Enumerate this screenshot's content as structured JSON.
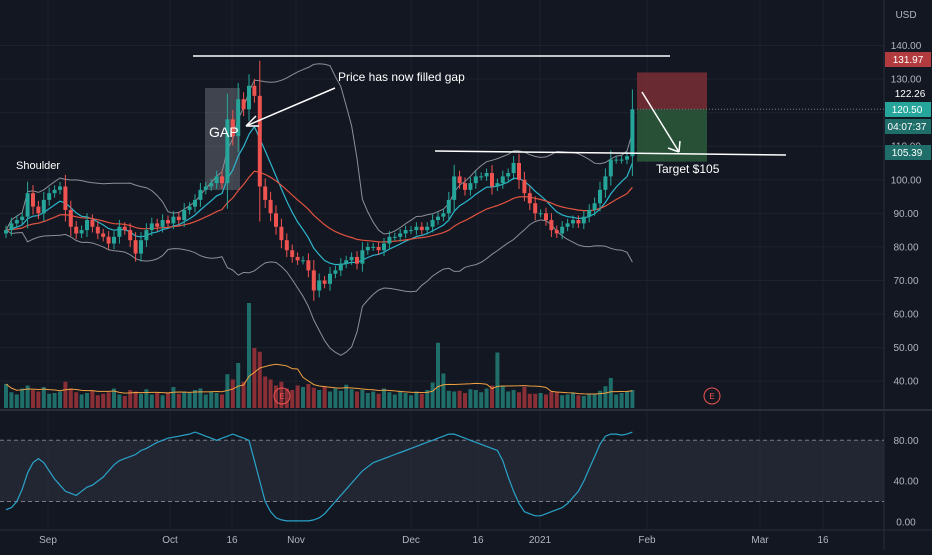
{
  "currency": "USD",
  "colors": {
    "background": "#131722",
    "up": "#26a69a",
    "down": "#ef5350",
    "volume_up": "#1f6e69",
    "volume_down": "#8a2f36",
    "bollinger": "#8c8f96",
    "ema_fast": "#2bb6cc",
    "ema_slow": "#e0533f",
    "volume_ma": "#f0a040",
    "rsi": "#2aa3c9",
    "annotation": "#ffffff",
    "stop_zone": "#7a2e35",
    "target_zone": "#2c5a39"
  },
  "annotations": {
    "gap": "GAP",
    "gap_note": "Price has now filled gap",
    "target": "Target $105",
    "shoulder": "Shoulder",
    "earnings": "E"
  },
  "price_labels": {
    "stop": "131.97",
    "last": "122.26",
    "current": "120.50",
    "countdown": "04:07:37",
    "support": "105.39"
  },
  "chart_data": [
    {
      "type": "candlestick",
      "title": "",
      "y_axis_side": "right",
      "ylim": [
        32,
        147
      ],
      "y_ticks": [
        40,
        50,
        60,
        70,
        80,
        90,
        100,
        110,
        120,
        130,
        140
      ],
      "y_tick_labels": [
        "40.00",
        "50.00",
        "60.00",
        "70.00",
        "80.00",
        "90.00",
        "100.00",
        "110.00",
        "120.00",
        "130.00",
        "140.00"
      ],
      "x_tick_labels": [
        "Sep",
        "Oct",
        "16",
        "Nov",
        "Dec",
        "16",
        "2021",
        "Feb",
        "Mar",
        "16"
      ],
      "close_series": [
        85,
        87,
        88,
        89,
        96,
        92,
        90,
        94,
        96,
        97,
        98,
        91,
        86,
        84,
        85,
        88,
        86,
        84,
        83,
        81,
        83,
        86,
        85,
        82,
        78,
        82,
        85,
        87,
        86,
        88,
        87,
        89,
        88,
        91,
        92,
        94,
        97,
        98,
        99,
        101,
        99,
        118,
        113,
        124,
        121,
        128,
        125,
        98,
        94,
        90,
        86,
        82,
        79,
        77,
        76,
        76,
        73,
        67,
        70,
        69,
        72,
        73,
        75,
        76,
        77,
        75,
        79,
        80,
        80,
        79,
        81,
        83,
        83,
        84,
        85,
        85,
        86,
        85,
        86,
        88,
        89,
        90,
        94,
        101,
        99,
        97,
        99,
        101,
        101,
        102,
        98,
        99,
        101,
        102,
        105,
        100,
        96,
        93,
        90,
        90,
        88,
        85,
        84,
        86,
        87,
        88,
        87,
        89,
        91,
        93,
        97,
        101,
        106,
        106,
        106,
        107,
        121
      ],
      "volume_series": [
        3.2,
        2.1,
        1.8,
        2.6,
        3.0,
        2.4,
        2.2,
        2.8,
        1.9,
        2.0,
        2.2,
        3.5,
        2.6,
        2.1,
        1.8,
        2.0,
        2.3,
        1.7,
        1.9,
        2.1,
        2.6,
        1.8,
        1.6,
        2.4,
        2.2,
        1.9,
        2.5,
        1.8,
        2.0,
        1.7,
        2.1,
        2.8,
        1.9,
        2.2,
        2.0,
        2.4,
        2.6,
        1.8,
        2.2,
        2.0,
        1.8,
        4.5,
        3.8,
        6.0,
        3.5,
        14.0,
        8.0,
        7.5,
        4.2,
        3.8,
        3.0,
        3.5,
        2.6,
        2.4,
        3.0,
        2.8,
        3.2,
        2.7,
        2.4,
        2.9,
        2.2,
        2.6,
        2.3,
        3.1,
        2.5,
        2.2,
        2.4,
        2.0,
        2.2,
        1.9,
        2.6,
        2.1,
        1.8,
        2.3,
        2.0,
        1.7,
        2.2,
        1.9,
        2.4,
        3.4,
        8.7,
        4.6,
        2.3,
        2.2,
        2.3,
        2.0,
        2.5,
        2.4,
        2.1,
        2.6,
        3.0,
        7.4,
        2.9,
        2.2,
        2.4,
        2.1,
        2.8,
        1.9,
        1.9,
        2.0,
        1.8,
        2.2,
        2.1,
        1.7,
        1.8,
        2.0,
        1.7,
        1.6,
        1.8,
        1.9,
        2.3,
        2.9,
        4.0,
        1.8,
        2.0,
        2.2,
        2.4
      ],
      "horizontal_levels": [
        131.97,
        105.39
      ]
    },
    {
      "type": "line",
      "title": "",
      "ylim": [
        -4,
        92
      ],
      "y_ticks": [
        0,
        40,
        80
      ],
      "y_tick_labels": [
        "0.00",
        "40.00",
        "80.00"
      ],
      "band": [
        20,
        80
      ],
      "series": [
        {
          "values": [
            12,
            14,
            20,
            32,
            48,
            58,
            62,
            58,
            50,
            42,
            36,
            30,
            28,
            26,
            30,
            34,
            36,
            40,
            44,
            50,
            56,
            60,
            62,
            64,
            66,
            70,
            72,
            75,
            78,
            80,
            82,
            83,
            84,
            85,
            86,
            88,
            86,
            84,
            82,
            80,
            82,
            84,
            86,
            84,
            82,
            80,
            60,
            40,
            20,
            10,
            4,
            2,
            1,
            1,
            1,
            1,
            1,
            2,
            4,
            8,
            14,
            20,
            26,
            32,
            38,
            44,
            50,
            54,
            58,
            60,
            62,
            64,
            66,
            68,
            70,
            72,
            74,
            76,
            78,
            80,
            82,
            84,
            86,
            86,
            84,
            82,
            80,
            78,
            76,
            74,
            72,
            70,
            60,
            44,
            30,
            18,
            10,
            8,
            6,
            6,
            8,
            10,
            12,
            14,
            18,
            24,
            30,
            40,
            52,
            64,
            76,
            84,
            86,
            86,
            85,
            86,
            88
          ]
        }
      ]
    }
  ]
}
